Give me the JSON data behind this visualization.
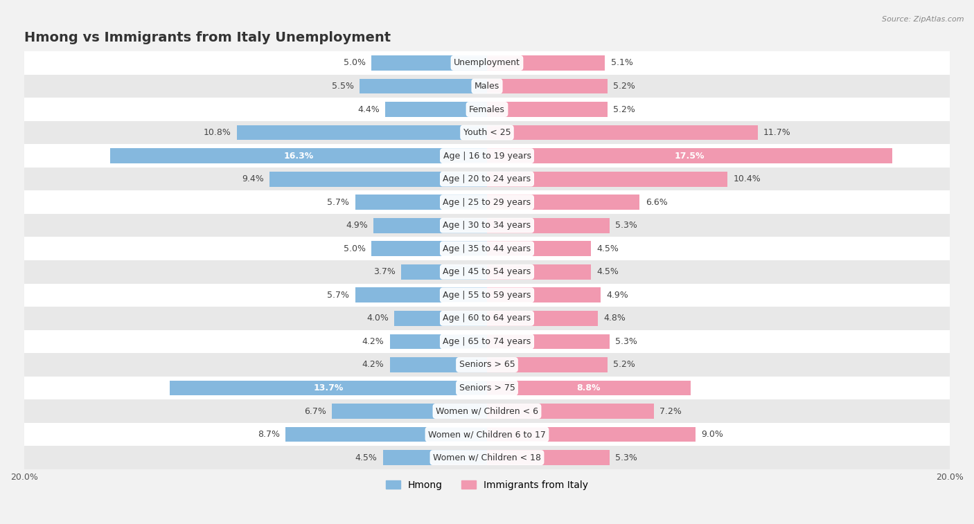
{
  "title": "Hmong vs Immigrants from Italy Unemployment",
  "source": "Source: ZipAtlas.com",
  "categories": [
    "Unemployment",
    "Males",
    "Females",
    "Youth < 25",
    "Age | 16 to 19 years",
    "Age | 20 to 24 years",
    "Age | 25 to 29 years",
    "Age | 30 to 34 years",
    "Age | 35 to 44 years",
    "Age | 45 to 54 years",
    "Age | 55 to 59 years",
    "Age | 60 to 64 years",
    "Age | 65 to 74 years",
    "Seniors > 65",
    "Seniors > 75",
    "Women w/ Children < 6",
    "Women w/ Children 6 to 17",
    "Women w/ Children < 18"
  ],
  "hmong": [
    5.0,
    5.5,
    4.4,
    10.8,
    16.3,
    9.4,
    5.7,
    4.9,
    5.0,
    3.7,
    5.7,
    4.0,
    4.2,
    4.2,
    13.7,
    6.7,
    8.7,
    4.5
  ],
  "italy": [
    5.1,
    5.2,
    5.2,
    11.7,
    17.5,
    10.4,
    6.6,
    5.3,
    4.5,
    4.5,
    4.9,
    4.8,
    5.3,
    5.2,
    8.8,
    7.2,
    9.0,
    5.3
  ],
  "hmong_color": "#85b8de",
  "italy_color": "#f199b0",
  "highlight_rows": [
    4,
    14
  ],
  "bar_height": 0.65,
  "xlim": 20.0,
  "bg_color": "#f2f2f2",
  "row_colors": [
    "#ffffff",
    "#e8e8e8"
  ],
  "title_fontsize": 14,
  "label_fontsize": 9,
  "category_fontsize": 9,
  "legend_fontsize": 10,
  "source_fontsize": 8
}
